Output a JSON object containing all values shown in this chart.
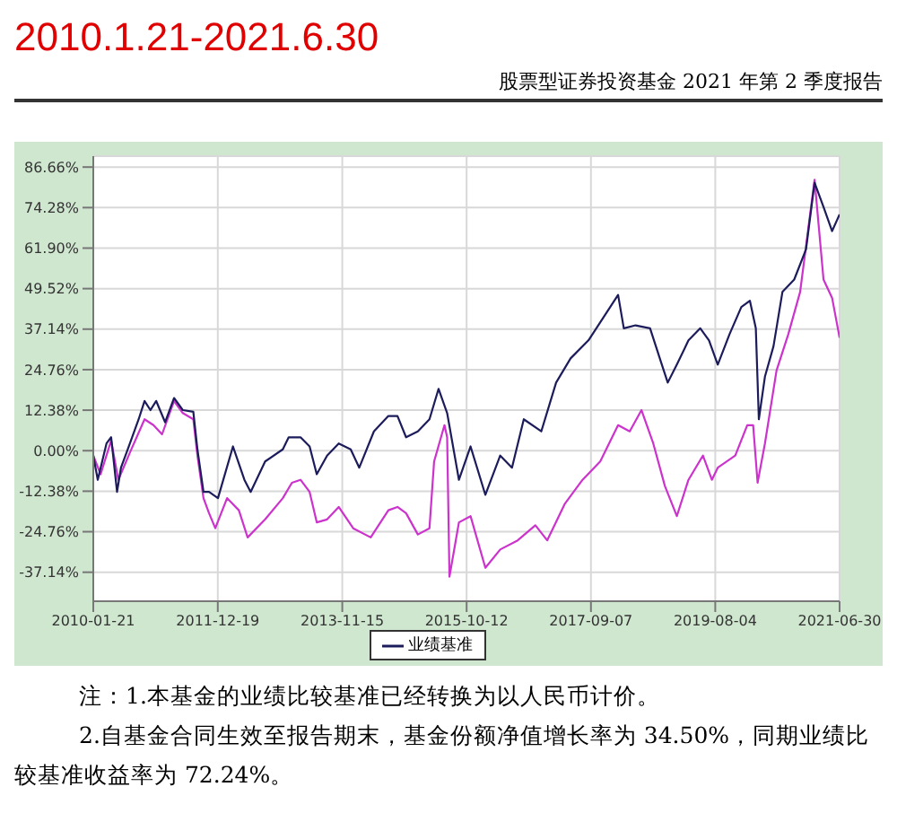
{
  "chart_data": {
    "type": "line",
    "title": "2010.1.21-2021.6.30",
    "subtitle": "股票型证券投资基金 2021 年第 2 季度报告",
    "annotations": [
      "注：1.本基金的业绩比较基准已经转换为以人民币计价。",
      "2.自基金合同生效至报告期末，基金份额净值增长率为 34.50%，同期业绩比较基准收益率为 72.24%。"
    ],
    "series": [
      {
        "color": "#cc33cc",
        "x": [
          "2010-01-21",
          "2010-03-03",
          "2010-05-01",
          "2010-06-10",
          "2010-08-14",
          "2010-11-04",
          "2010-12-24",
          "2011-02-10",
          "2011-04-18",
          "2011-06-06",
          "2011-08-04",
          "2011-08-27",
          "2011-09-30",
          "2011-10-31",
          "2011-12-05",
          "2012-02-09",
          "2012-04-15",
          "2012-06-03",
          "2012-09-09",
          "2012-12-17",
          "2013-02-06",
          "2013-03-26",
          "2013-05-16",
          "2013-06-25",
          "2013-08-22",
          "2013-10-26",
          "2014-01-15",
          "2014-04-23",
          "2014-07-31",
          "2014-09-20",
          "2014-11-07",
          "2015-01-12",
          "2015-03-18",
          "2015-04-13",
          "2015-06-10",
          "2015-06-25",
          "2015-07-08",
          "2015-08-30",
          "2015-11-03",
          "2016-01-25",
          "2016-04-17",
          "2016-07-24",
          "2016-10-31",
          "2017-01-05",
          "2017-04-13",
          "2017-07-22",
          "2017-10-29",
          "2018-02-06",
          "2018-04-12",
          "2018-06-17",
          "2018-08-22",
          "2018-10-26",
          "2019-01-01",
          "2019-03-07",
          "2019-05-27",
          "2019-07-16",
          "2019-08-18",
          "2019-11-24",
          "2020-01-30",
          "2020-03-03",
          "2020-03-28",
          "2020-05-08",
          "2020-07-12",
          "2020-09-16",
          "2020-11-21",
          "2021-02-10",
          "2021-04-01",
          "2021-05-19",
          "2021-06-30"
        ],
        "values": [
          -1.5,
          -7.2,
          3.1,
          -8.9,
          -0.6,
          9.6,
          7.8,
          5.0,
          15.2,
          11.5,
          9.6,
          -1.5,
          -14.5,
          -19.1,
          -23.7,
          -14.5,
          -18.2,
          -26.5,
          -21.0,
          -14.5,
          -9.8,
          -8.9,
          -12.6,
          -21.9,
          -21.0,
          -17.2,
          -23.7,
          -26.5,
          -18.2,
          -17.2,
          -19.1,
          -25.6,
          -23.7,
          -3.3,
          7.8,
          4.1,
          -38.5,
          -21.9,
          -20.0,
          -35.8,
          -30.2,
          -27.4,
          -22.8,
          -27.4,
          -16.3,
          -8.9,
          -3.3,
          7.8,
          5.9,
          12.4,
          2.2,
          -10.8,
          -20.0,
          -8.9,
          -1.5,
          -8.9,
          -5.2,
          -1.5,
          7.8,
          7.8,
          -9.8,
          2.2,
          24.5,
          35.6,
          48.5,
          82.8,
          52.3,
          46.7,
          34.5
        ]
      },
      {
        "name": "业绩基准",
        "color": "#1c1c5c",
        "x": [
          "2010-01-21",
          "2010-02-15",
          "2010-04-05",
          "2010-05-01",
          "2010-06-03",
          "2010-06-25",
          "2010-08-14",
          "2010-10-02",
          "2010-11-04",
          "2010-12-07",
          "2011-01-08",
          "2011-02-27",
          "2011-04-18",
          "2011-06-06",
          "2011-08-04",
          "2011-08-27",
          "2011-09-30",
          "2011-10-31",
          "2011-12-20",
          "2012-03-13",
          "2012-05-16",
          "2012-06-20",
          "2012-09-09",
          "2012-12-17",
          "2013-01-19",
          "2013-03-26",
          "2013-05-16",
          "2013-06-25",
          "2013-08-22",
          "2013-10-26",
          "2014-01-01",
          "2014-02-18",
          "2014-05-11",
          "2014-07-31",
          "2014-09-20",
          "2014-11-07",
          "2015-01-12",
          "2015-03-18",
          "2015-05-08",
          "2015-06-25",
          "2015-08-30",
          "2015-11-03",
          "2016-01-25",
          "2016-04-17",
          "2016-06-22",
          "2016-08-27",
          "2016-12-03",
          "2017-02-24",
          "2017-05-16",
          "2017-08-24",
          "2017-12-01",
          "2018-02-06",
          "2018-03-10",
          "2018-05-15",
          "2018-08-04",
          "2018-10-09",
          "2018-11-11",
          "2019-01-01",
          "2019-03-07",
          "2019-05-12",
          "2019-06-30",
          "2019-08-18",
          "2019-10-23",
          "2019-12-28",
          "2020-02-14",
          "2020-03-18",
          "2020-04-04",
          "2020-05-08",
          "2020-06-25",
          "2020-08-14",
          "2020-10-19",
          "2020-12-24",
          "2021-02-10",
          "2021-04-01",
          "2021-05-19",
          "2021-06-30"
        ],
        "values": [
          -1.5,
          -8.9,
          2.2,
          4.1,
          -12.6,
          -5.2,
          2.2,
          9.6,
          15.2,
          12.4,
          15.2,
          8.7,
          16.1,
          12.4,
          11.9,
          0.4,
          -12.6,
          -12.6,
          -14.5,
          1.3,
          -8.9,
          -12.6,
          -3.3,
          0.4,
          4.1,
          4.1,
          1.3,
          -7.2,
          -1.5,
          2.2,
          0.4,
          -5.2,
          5.9,
          10.6,
          10.6,
          4.1,
          5.9,
          9.6,
          18.9,
          11.5,
          -8.9,
          1.3,
          -13.5,
          -1.5,
          -5.2,
          9.6,
          5.9,
          20.8,
          28.2,
          33.7,
          42.0,
          47.6,
          37.4,
          38.3,
          37.4,
          26.3,
          20.8,
          26.3,
          33.7,
          37.4,
          33.7,
          26.3,
          35.6,
          43.9,
          45.8,
          37.4,
          9.6,
          22.6,
          31.9,
          48.5,
          52.3,
          61.5,
          81.9,
          74.5,
          67.1,
          72.2
        ]
      }
    ],
    "xlim": [
      "2010-01-21",
      "2021-06-30"
    ],
    "xticks": [
      "2010-01-21",
      "2011-12-19",
      "2013-11-15",
      "2015-10-12",
      "2017-09-07",
      "2019-08-04",
      "2021-06-30"
    ],
    "ylim": [
      -46,
      90
    ],
    "yticks": [
      {
        "value": -37.14,
        "label": "-37.14%"
      },
      {
        "value": -24.76,
        "label": "-24.76%"
      },
      {
        "value": -12.38,
        "label": "-12.38%"
      },
      {
        "value": 0,
        "label": "0.00%"
      },
      {
        "value": 12.38,
        "label": "12.38%"
      },
      {
        "value": 24.76,
        "label": "24.76%"
      },
      {
        "value": 37.14,
        "label": "37.14%"
      },
      {
        "value": 49.52,
        "label": "49.52%"
      },
      {
        "value": 61.9,
        "label": "61.90%"
      },
      {
        "value": 74.28,
        "label": "74.28%"
      },
      {
        "value": 86.66,
        "label": "86.66%"
      }
    ],
    "grid": true,
    "legend": "bottom",
    "marker": "none",
    "line_style": "solid"
  }
}
